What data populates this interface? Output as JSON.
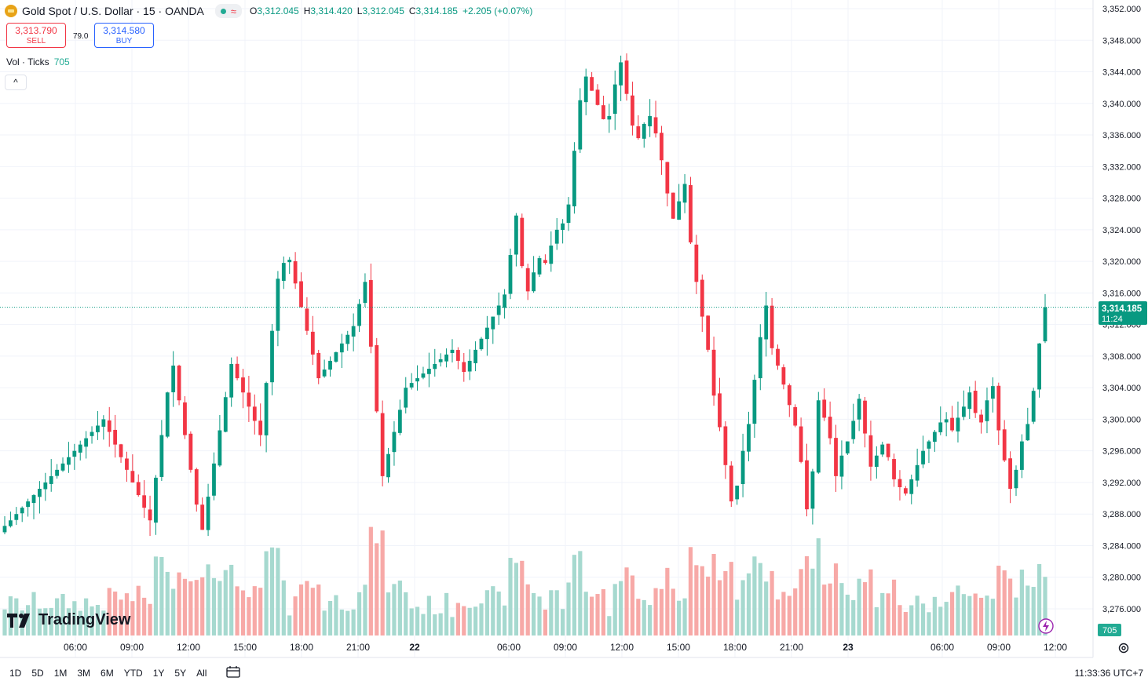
{
  "header": {
    "symbol_title": "Gold Spot / U.S. Dollar · 15 · OANDA",
    "wave_glyph": "≈",
    "ohlc": [
      {
        "k": "O",
        "v": "3,312.045"
      },
      {
        "k": "H",
        "v": "3,314.420"
      },
      {
        "k": "L",
        "v": "3,312.045"
      },
      {
        "k": "C",
        "v": "3,314.185"
      },
      {
        "k": "",
        "v": "+2.205 (+0.07%)"
      }
    ]
  },
  "trade": {
    "sell_price": "3,313.790",
    "sell_label": "SELL",
    "spread": "79.0",
    "buy_price": "3,314.580",
    "buy_label": "BUY"
  },
  "volume_indicator": {
    "label": "Vol · Ticks",
    "value": "705"
  },
  "collapse_glyph": "^",
  "branding": {
    "logo_text": "TradingView"
  },
  "price_axis": {
    "labels": [
      "3,352.000",
      "3,348.000",
      "3,344.000",
      "3,340.000",
      "3,336.000",
      "3,332.000",
      "3,328.000",
      "3,324.000",
      "3,320.000",
      "3,316.000",
      "3,312.000",
      "3,308.000",
      "3,304.000",
      "3,300.000",
      "3,296.000",
      "3,292.000",
      "3,288.000",
      "3,284.000",
      "3,280.000",
      "3,276.000"
    ],
    "last_price": "3,314.185",
    "countdown": "11:24",
    "volume_tag": "705"
  },
  "time_axis": {
    "labels": [
      "06:00",
      "09:00",
      "12:00",
      "15:00",
      "18:00",
      "21:00",
      "22",
      "06:00",
      "09:00",
      "12:00",
      "15:00",
      "18:00",
      "21:00",
      "23",
      "06:00",
      "09:00",
      "12:00"
    ],
    "bold_labels": [
      "22",
      "23"
    ]
  },
  "bottom_bar": {
    "ranges": [
      "1D",
      "5D",
      "1M",
      "3M",
      "6M",
      "YTD",
      "1Y",
      "5Y",
      "All"
    ],
    "clock": "11:33:36 UTC+7"
  },
  "colors": {
    "up": "#089981",
    "down": "#f23645",
    "vol_up": "#a6d9cf",
    "vol_down": "#f7a9a7",
    "grid": "#f0f3fa",
    "price_tag": "#089981"
  },
  "chart_data": {
    "type": "candlestick",
    "symbol": "Gold Spot / U.S. Dollar",
    "interval": "15",
    "ylim": [
      3272,
      3353
    ],
    "last_price": 3314.185,
    "ohlc_close_series": [
      3286.5,
      3287.2,
      3288.0,
      3288.8,
      3289.6,
      3290.4,
      3291.2,
      3292.0,
      3292.8,
      3293.6,
      3294.4,
      3295.2,
      3296.0,
      3296.8,
      3297.6,
      3298.4,
      3299.2,
      3300.0,
      3298.4,
      3296.8,
      3295.2,
      3293.6,
      3292.0,
      3290.4,
      3288.8,
      3287.2,
      3292.6,
      3298.0,
      3303.4,
      3306.8,
      3302.4,
      3298.0,
      3293.6,
      3289.2,
      3286.0,
      3290.2,
      3294.4,
      3298.6,
      3302.8,
      3307.0,
      3305.2,
      3303.4,
      3301.6,
      3299.8,
      3298.0,
      3304.6,
      3311.2,
      3317.8,
      3319.8,
      3320.2,
      3317.2,
      3314.2,
      3311.2,
      3308.2,
      3305.2,
      3306.3,
      3307.4,
      3308.5,
      3309.6,
      3310.7,
      3311.8,
      3314.6,
      3317.4,
      3309.2,
      3301.0,
      3292.8,
      3295.6,
      3298.4,
      3301.2,
      3304.0,
      3304.6,
      3305.2,
      3305.8,
      3306.4,
      3307.0,
      3307.6,
      3308.2,
      3308.8,
      3307.4,
      3306.0,
      3307.4,
      3308.8,
      3310.2,
      3311.6,
      3313.0,
      3314.4,
      3315.8,
      3320.8,
      3325.8,
      3319.4,
      3316.2,
      3318.6,
      3320.4,
      3319.8,
      3322.0,
      3324.0,
      3324.8,
      3327.2,
      3334.0,
      3340.4,
      3343.4,
      3341.6,
      3339.8,
      3338.0,
      3338.4,
      3342.4,
      3345.2,
      3341.2,
      3337.2,
      3335.6,
      3337.4,
      3338.4,
      3336.2,
      3332.8,
      3328.6,
      3325.4,
      3327.6,
      3329.8,
      3322.4,
      3317.4,
      3313.0,
      3308.8,
      3303.0,
      3299.0,
      3294.2,
      3289.6,
      3291.6,
      3296.0,
      3299.4,
      3305.0,
      3310.4,
      3314.4,
      3309.0,
      3306.8,
      3304.4,
      3301.8,
      3299.2,
      3294.6,
      3288.6,
      3293.4,
      3302.4,
      3300.2,
      3297.6,
      3292.8,
      3295.4,
      3297.2,
      3299.8,
      3302.6,
      3298.2,
      3294.0,
      3295.4,
      3296.8,
      3295.2,
      3292.4,
      3291.4,
      3290.6,
      3292.4,
      3294.2,
      3296.0,
      3297.2,
      3298.4,
      3299.6,
      3300.0,
      3298.6,
      3300.2,
      3301.6,
      3303.4,
      3300.8,
      3299.6,
      3302.4,
      3304.2,
      3298.6,
      3294.8,
      3291.2,
      3293.6,
      3297.2,
      3299.4,
      3303.6,
      3309.6,
      3314.185
    ],
    "volume_range": [
      0,
      130
    ],
    "time_labels": [
      "06:00",
      "09:00",
      "12:00",
      "15:00",
      "18:00",
      "21:00",
      "22",
      "06:00",
      "09:00",
      "12:00",
      "15:00",
      "18:00",
      "21:00",
      "23",
      "06:00",
      "09:00",
      "12:00"
    ]
  }
}
